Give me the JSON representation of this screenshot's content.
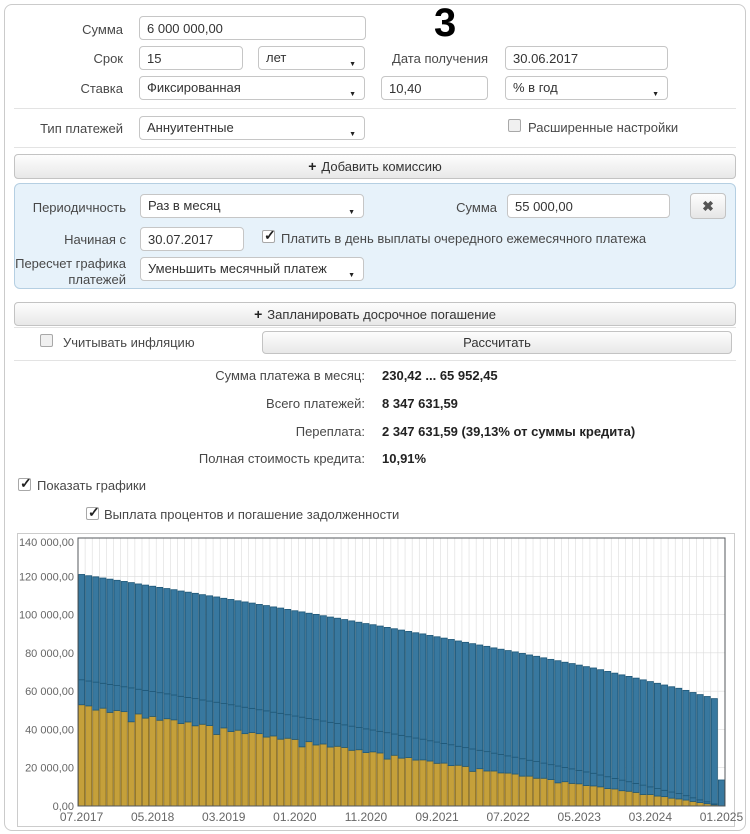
{
  "annotation": "3",
  "form": {
    "amount_label": "Сумма",
    "amount_value": "6 000 000,00",
    "term_label": "Срок",
    "term_value": "15",
    "term_unit": "лет",
    "start_date_label": "Дата получения",
    "start_date_value": "30.06.2017",
    "rate_label": "Ставка",
    "rate_type": "Фиксированная",
    "rate_value": "10,40",
    "rate_unit": "% в год",
    "payment_type_label": "Тип платежей",
    "payment_type_value": "Аннуитентные",
    "advanced_label": "Расширенные настройки",
    "advanced_checked": false
  },
  "commission_button": {
    "plus": "+",
    "label": "Добавить комиссию"
  },
  "early_payment": {
    "periodicity_label": "Периодичность",
    "periodicity_value": "Раз в месяц",
    "amount_label": "Сумма",
    "amount_value": "55 000,00",
    "close_icon": "✖",
    "start_label": "Начиная с",
    "start_value": "30.07.2017",
    "pay_on_day_label": "Платить в день выплаты очередного ежемесячного платежа",
    "pay_on_day_checked": true,
    "recalc_label_line1": "Пересчет графика",
    "recalc_label_line2": "платежей",
    "recalc_value": "Уменьшить месячный платеж"
  },
  "schedule_button": {
    "plus": "+",
    "label": "Запланировать досрочное погашение"
  },
  "calc_row": {
    "inflation_label": "Учитывать инфляцию",
    "inflation_checked": false,
    "calculate_label": "Рассчитать"
  },
  "results": {
    "rows": [
      {
        "label": "Сумма платежа в месяц:",
        "value": "230,42 ... 65 952,45"
      },
      {
        "label": "Всего платежей:",
        "value": "8 347 631,59"
      },
      {
        "label": "Переплата:",
        "value": "2 347 631,59 (39,13% от суммы кредита)"
      },
      {
        "label": "Полная стоимость кредита:",
        "value": "10,91%"
      }
    ]
  },
  "charts_toggle": {
    "label": "Показать графики",
    "checked": true
  },
  "chart_section_toggle": {
    "label": "Выплата процентов и погашение задолженности",
    "checked": true
  },
  "chart_data": {
    "type": "bar",
    "subtype": "stacked-monthly-payments",
    "title": "Выплата процентов и погашение задолженности",
    "start_month": "07.2017",
    "months": 91,
    "tick_interval": 10,
    "x_ticks": [
      "07.2017",
      "05.2018",
      "03.2019",
      "01.2020",
      "11.2020",
      "09.2021",
      "07.2022",
      "05.2023",
      "03.2024",
      "01.2025"
    ],
    "y_ticks": [
      "0,00",
      "20 000,00",
      "40 000,00",
      "60 000,00",
      "80 000,00",
      "100 000,00",
      "120 000,00",
      "140 000,00"
    ],
    "ylim": [
      0,
      140000
    ],
    "grid": true,
    "legend": false,
    "colors": {
      "interest": "#c5a03a",
      "interest_border": "#8a6e22",
      "principal": "#38789f",
      "principal_border": "#1f5878",
      "grid": "#dcdcdc",
      "plot_border": "#55595c"
    },
    "interest": [
      52900,
      52300,
      50100,
      51100,
      48900,
      49900,
      49300,
      44000,
      48100,
      45900,
      46800,
      44800,
      45600,
      45000,
      43100,
      43900,
      41900,
      42700,
      42000,
      37400,
      40800,
      38900,
      39600,
      37800,
      38400,
      37800,
      36000,
      36600,
      34900,
      35400,
      34800,
      30900,
      33600,
      31900,
      32400,
      30800,
      31200,
      30600,
      29100,
      29400,
      27900,
      28300,
      27700,
      24500,
      26500,
      25000,
      25300,
      24000,
      24100,
      23500,
      22300,
      22400,
      21100,
      21300,
      20700,
      18100,
      19500,
      18300,
      18300,
      17300,
      17200,
      16700,
      15600,
      15600,
      14500,
      14500,
      13800,
      12100,
      12700,
      11800,
      11600,
      10700,
      10500,
      10000,
      9100,
      8900,
      8000,
      7700,
      7100,
      6000,
      6000,
      5200,
      4900,
      4100,
      3700,
      3100,
      2400,
      1800,
      1200,
      600,
      100
    ],
    "scheduled_payment": [
      65950,
      65300,
      64700,
      64100,
      63500,
      62900,
      62300,
      61700,
      61000,
      60400,
      59800,
      59200,
      58600,
      58000,
      57300,
      56700,
      56100,
      55400,
      54800,
      54200,
      53500,
      52900,
      52200,
      51600,
      51000,
      50300,
      49700,
      49000,
      48400,
      47700,
      47000,
      46400,
      45700,
      45100,
      44400,
      43700,
      43100,
      42400,
      41700,
      41000,
      40300,
      39700,
      39000,
      38300,
      37600,
      36900,
      36200,
      35500,
      34900,
      34100,
      33400,
      32700,
      32000,
      31200,
      30500,
      29800,
      29100,
      28400,
      27600,
      26900,
      26200,
      25500,
      24700,
      23900,
      23200,
      22400,
      21600,
      20900,
      20100,
      19400,
      18600,
      17800,
      17100,
      16200,
      15300,
      14400,
      13500,
      12700,
      11800,
      10900,
      10000,
      9100,
      8200,
      7300,
      6500,
      5400,
      4300,
      3200,
      2200,
      1100,
      13600
    ],
    "extra_payment": [
      55000,
      55000,
      55000,
      55000,
      55000,
      55000,
      55000,
      55000,
      55000,
      55000,
      55000,
      55000,
      55000,
      55000,
      55000,
      55000,
      55000,
      55000,
      55000,
      55000,
      55000,
      55000,
      55000,
      55000,
      55000,
      55000,
      55000,
      55000,
      55000,
      55000,
      55000,
      55000,
      55000,
      55000,
      55000,
      55000,
      55000,
      55000,
      55000,
      55000,
      55000,
      55000,
      55000,
      55000,
      55000,
      55000,
      55000,
      55000,
      55000,
      55000,
      55000,
      55000,
      55000,
      55000,
      55000,
      55000,
      55000,
      55000,
      55000,
      55000,
      55000,
      55000,
      55000,
      55000,
      55000,
      55000,
      55000,
      55000,
      55000,
      55000,
      55000,
      55000,
      55000,
      55000,
      55000,
      55000,
      55000,
      55000,
      55000,
      55000,
      55000,
      55000,
      55000,
      55000,
      55000,
      55000,
      55000,
      55000,
      55000,
      55000,
      0
    ]
  }
}
